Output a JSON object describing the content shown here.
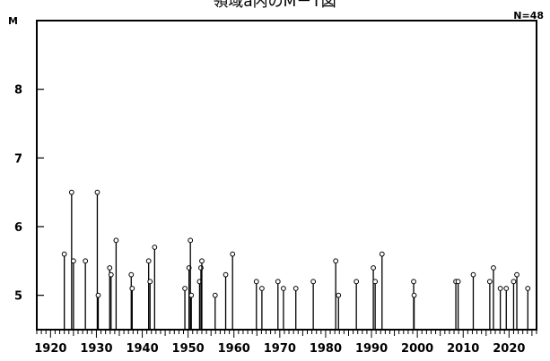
{
  "chart_data": {
    "type": "stem",
    "title": "領域a内のM－T図",
    "ylabel": "M",
    "count_label": "N=48",
    "xlim": [
      1917,
      2026
    ],
    "ylim": [
      4.5,
      9.0
    ],
    "xticks": [
      1920,
      1930,
      1940,
      1950,
      1960,
      1970,
      1980,
      1990,
      2000,
      2010,
      2020
    ],
    "yticks": [
      5,
      6,
      7,
      8
    ],
    "events": [
      {
        "x": 1923.0,
        "y": 5.6
      },
      {
        "x": 1924.6,
        "y": 6.5
      },
      {
        "x": 1925.0,
        "y": 5.5
      },
      {
        "x": 1927.6,
        "y": 5.5
      },
      {
        "x": 1930.2,
        "y": 6.5
      },
      {
        "x": 1930.4,
        "y": 5.0
      },
      {
        "x": 1932.9,
        "y": 5.4
      },
      {
        "x": 1933.2,
        "y": 5.3
      },
      {
        "x": 1934.3,
        "y": 5.8
      },
      {
        "x": 1937.6,
        "y": 5.3
      },
      {
        "x": 1937.8,
        "y": 5.1
      },
      {
        "x": 1941.4,
        "y": 5.5
      },
      {
        "x": 1941.7,
        "y": 5.2
      },
      {
        "x": 1942.7,
        "y": 5.7
      },
      {
        "x": 1949.3,
        "y": 5.1
      },
      {
        "x": 1950.2,
        "y": 5.4
      },
      {
        "x": 1950.5,
        "y": 5.8
      },
      {
        "x": 1950.7,
        "y": 5.0
      },
      {
        "x": 1952.5,
        "y": 5.2
      },
      {
        "x": 1952.8,
        "y": 5.4
      },
      {
        "x": 1953.0,
        "y": 5.5
      },
      {
        "x": 1955.9,
        "y": 5.0
      },
      {
        "x": 1958.2,
        "y": 5.3
      },
      {
        "x": 1959.7,
        "y": 5.6
      },
      {
        "x": 1964.9,
        "y": 5.2
      },
      {
        "x": 1966.1,
        "y": 5.1
      },
      {
        "x": 1969.6,
        "y": 5.2
      },
      {
        "x": 1970.8,
        "y": 5.1
      },
      {
        "x": 1973.5,
        "y": 5.1
      },
      {
        "x": 1977.3,
        "y": 5.2
      },
      {
        "x": 1982.2,
        "y": 5.5
      },
      {
        "x": 1982.8,
        "y": 5.0
      },
      {
        "x": 1986.7,
        "y": 5.2
      },
      {
        "x": 1990.4,
        "y": 5.4
      },
      {
        "x": 1990.8,
        "y": 5.2
      },
      {
        "x": 1992.3,
        "y": 5.6
      },
      {
        "x": 1999.2,
        "y": 5.2
      },
      {
        "x": 1999.3,
        "y": 5.0
      },
      {
        "x": 2008.4,
        "y": 5.2
      },
      {
        "x": 2008.9,
        "y": 5.2
      },
      {
        "x": 2012.2,
        "y": 5.3
      },
      {
        "x": 2015.8,
        "y": 5.2
      },
      {
        "x": 2016.6,
        "y": 5.4
      },
      {
        "x": 2018.1,
        "y": 5.1
      },
      {
        "x": 2019.4,
        "y": 5.1
      },
      {
        "x": 2021.0,
        "y": 5.2
      },
      {
        "x": 2021.7,
        "y": 5.3
      },
      {
        "x": 2024.1,
        "y": 5.1
      }
    ]
  }
}
